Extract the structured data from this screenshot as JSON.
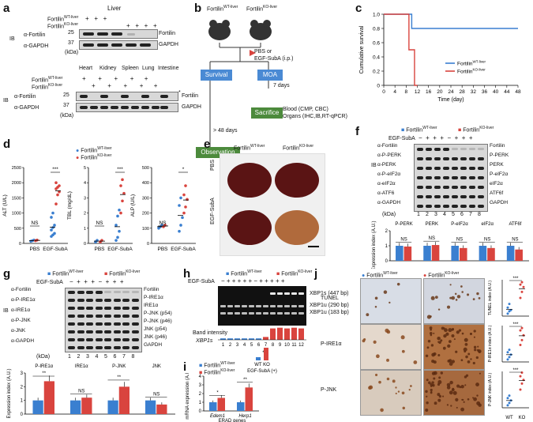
{
  "panel_labels": {
    "a": "a",
    "b": "b",
    "c": "c",
    "d": "d",
    "e": "e",
    "f": "f",
    "g": "g",
    "h": "h",
    "i": "i",
    "j": "j"
  },
  "legend": {
    "wt": "Fortilin",
    "wt_sup": "WT-liver",
    "ko": "Fortilin",
    "ko_sup": "KO-liver"
  },
  "colors": {
    "wt": "#3a7fd0",
    "ko": "#d9443e",
    "gel": "#111111",
    "tissue_brown": "#8a4a1e"
  },
  "a": {
    "liver_title": "Liver",
    "ib": "IB",
    "rows": [
      "α-Fortilin",
      "α-GAPDH"
    ],
    "right_labels": [
      "Fortilin",
      "GAPDH"
    ],
    "kda": "(kDa)",
    "markers": [
      "25",
      "37"
    ],
    "wt_marks": [
      "+",
      "+",
      "+",
      "",
      "",
      "",
      ""
    ],
    "ko_marks": [
      "",
      "",
      "",
      "+",
      "+",
      "+",
      "+"
    ],
    "tissues": [
      "Heart",
      "Kidney",
      "Spleen",
      "Lung",
      "Intestine"
    ],
    "star": "*"
  },
  "b": {
    "mouse_wt": "Fortilin",
    "mouse_ko": "Fortilin",
    "treatment": "PBS or",
    "treatment2": "EGF-SubA (i.p.)",
    "survival": "Survival",
    "moa": "MOA",
    "days7": "7 days",
    "sacrifice": "Sacrifice",
    "blood": "Blood (CMP, CBC)",
    "organs": "Organs (IHC,IB,RT-qPCR)",
    "days48": "> 48 days",
    "observation": "Observation"
  },
  "c": {
    "ylabel": "Cumulative survival",
    "xlabel": "Time (day)",
    "xticks": [
      "0",
      "4",
      "8",
      "12",
      "16",
      "20",
      "24",
      "28",
      "32",
      "36",
      "40",
      "44",
      "48"
    ],
    "yticks": [
      "0",
      "0.2",
      "0.4",
      "0.6",
      "0.8",
      "1.0"
    ]
  },
  "chart_data": [
    {
      "type": "line",
      "panel": "c",
      "title": "",
      "xlabel": "Time (day)",
      "ylabel": "Cumulative survival",
      "xlim": [
        0,
        48
      ],
      "ylim": [
        0,
        1
      ],
      "series": [
        {
          "name": "FortilinWT-liver",
          "x": [
            0,
            10,
            10,
            48
          ],
          "y": [
            1,
            1,
            0.8,
            0.8
          ]
        },
        {
          "name": "FortilinKO-liver",
          "x": [
            0,
            9,
            9,
            11,
            11,
            12
          ],
          "y": [
            1,
            1,
            0.5,
            0.5,
            0,
            0
          ]
        }
      ]
    },
    {
      "type": "scatter",
      "panel": "d",
      "title": "",
      "ylabel": "ALT (U/L)",
      "categories": [
        "PBS",
        "EGF-SubA"
      ],
      "ylim": [
        0,
        2500
      ],
      "series": [
        {
          "name": "FortilinWT-liver",
          "values": [
            [
              70,
              90,
              110
            ],
            [
              230,
              280,
              330,
              440,
              520,
              600,
              860,
              1000
            ]
          ]
        },
        {
          "name": "FortilinKO-liver",
          "values": [
            [
              90,
              110
            ],
            [
              1300,
              1600,
              1700,
              1800,
              1850,
              1900,
              2000
            ]
          ]
        }
      ],
      "annotations": [
        "NS",
        "***"
      ]
    },
    {
      "type": "scatter",
      "panel": "d",
      "title": "",
      "ylabel": "TBL (mg/dL)",
      "categories": [
        "PBS",
        "EGF-SubA"
      ],
      "ylim": [
        0,
        5
      ],
      "series": [
        {
          "name": "FortilinWT-liver",
          "values": [
            [
              0.1,
              0.2
            ],
            [
              0.2,
              0.4,
              0.8,
              1.2,
              1.8,
              2.2
            ]
          ]
        },
        {
          "name": "FortilinKO-liver",
          "values": [
            [
              0.1,
              0.2
            ],
            [
              2.0,
              2.8,
              3.3,
              3.8,
              4.2
            ]
          ]
        }
      ],
      "annotations": [
        "NS",
        "***"
      ]
    },
    {
      "type": "scatter",
      "panel": "d",
      "title": "",
      "ylabel": "ALP (U/L)",
      "categories": [
        "PBS",
        "EGF-SubA"
      ],
      "ylim": [
        0,
        500
      ],
      "series": [
        {
          "name": "FortilinWT-liver",
          "values": [
            [
              100,
              110,
              120
            ],
            [
              80,
              120,
              170,
              250,
              300
            ]
          ]
        },
        {
          "name": "FortilinKO-liver",
          "values": [
            [
              110,
              120
            ],
            [
              200,
              240,
              290,
              320,
              380
            ]
          ]
        }
      ],
      "annotations": [
        "NS",
        "*"
      ]
    },
    {
      "type": "bar",
      "panel": "f",
      "title": "",
      "ylabel": "Expression index (A.U.)",
      "categories": [
        "P-PERK",
        "PERK",
        "P-eIF2α",
        "eIF2α",
        "ATF6f"
      ],
      "ylim": [
        0,
        2
      ],
      "series": [
        {
          "name": "FortilinWT-liver",
          "values": [
            1.0,
            1.0,
            1.0,
            1.0,
            1.0
          ]
        },
        {
          "name": "FortilinKO-liver",
          "values": [
            0.95,
            1.05,
            0.85,
            0.85,
            0.75
          ]
        }
      ],
      "annotations": [
        "NS",
        "NS",
        "NS",
        "NS",
        "NS"
      ]
    },
    {
      "type": "bar",
      "panel": "g",
      "title": "",
      "ylabel": "Expression index (A.U.)",
      "categories": [
        "P-IRE1α",
        "IRE1α",
        "P-JNK",
        "JNK"
      ],
      "ylim": [
        0,
        3
      ],
      "series": [
        {
          "name": "FortilinWT-liver",
          "values": [
            1.0,
            1.0,
            1.0,
            1.0
          ]
        },
        {
          "name": "FortilinKO-liver",
          "values": [
            2.4,
            1.2,
            2.0,
            0.7
          ]
        }
      ],
      "annotations": [
        "**",
        "NS",
        "**",
        "NS"
      ]
    },
    {
      "type": "bar",
      "panel": "h",
      "title": "",
      "ylabel": "",
      "categories": [
        "1",
        "2",
        "3",
        "4",
        "5",
        "6",
        "7",
        "8",
        "9",
        "10",
        "11",
        "12"
      ],
      "ylim": [
        0,
        1
      ],
      "series": [
        {
          "name": "XBP1s band intensity",
          "values": [
            0.1,
            0.1,
            0.1,
            0.1,
            0.1,
            0.1,
            0.2,
            0.8,
            0.85,
            0.8,
            0.85,
            0.8
          ]
        }
      ],
      "annotations": [
        "***"
      ]
    },
    {
      "type": "bar",
      "panel": "i",
      "title": "",
      "ylabel": "mRNA expression (A.U.)",
      "xlabel": "ERAD genes",
      "categories": [
        "Edem1",
        "Herp1"
      ],
      "ylim": [
        0,
        4
      ],
      "series": [
        {
          "name": "FortilinWT-liver",
          "values": [
            1.0,
            1.0
          ]
        },
        {
          "name": "FortilinKO-liver",
          "values": [
            1.5,
            2.7
          ]
        }
      ],
      "annotations": [
        "*",
        "**"
      ]
    },
    {
      "type": "scatter",
      "panel": "j",
      "title": "",
      "ylabel": "TUNEL index (A.U.)",
      "categories": [
        "WT",
        "KO"
      ],
      "ylim": [
        0,
        3
      ],
      "series": [
        {
          "name": "WT",
          "values": [
            0.2,
            0.4,
            0.5,
            0.7,
            1.0
          ]
        },
        {
          "name": "KO",
          "values": [
            1.5,
            2.0,
            2.4,
            2.6,
            2.8
          ]
        }
      ],
      "annotations": [
        "***"
      ]
    },
    {
      "type": "scatter",
      "panel": "j",
      "title": "",
      "ylabel": "P-IRE1α index (A.U.)",
      "categories": [
        "WT",
        "KO"
      ],
      "ylim": [
        0,
        3
      ],
      "series": [
        {
          "name": "WT",
          "values": [
            0.2,
            0.4,
            0.6,
            0.8,
            1.0
          ]
        },
        {
          "name": "KO",
          "values": [
            1.4,
            1.8,
            2.2,
            2.6,
            2.8
          ]
        }
      ],
      "annotations": [
        "***"
      ]
    },
    {
      "type": "scatter",
      "panel": "j",
      "title": "",
      "ylabel": "P-JNK index (A.U.)",
      "categories": [
        "WT",
        "KO"
      ],
      "ylim": [
        0,
        3
      ],
      "series": [
        {
          "name": "WT",
          "values": [
            0.2,
            0.4,
            0.6,
            0.8,
            1.0
          ]
        },
        {
          "name": "KO",
          "values": [
            1.5,
            2.0,
            2.3,
            2.6,
            2.9
          ]
        }
      ],
      "annotations": [
        "***"
      ]
    }
  ],
  "d": {
    "alt": "ALT (U/L)",
    "tbl": "TBL (mg/dL)",
    "alp": "ALP (U/L)",
    "pbs": "PBS",
    "egf": "EGF-SubA",
    "ns": "NS",
    "three": "***",
    "one": "*",
    "alt_ticks": [
      "0",
      "500",
      "1000",
      "1500",
      "2000",
      "2500"
    ],
    "tbl_ticks": [
      "0",
      "1",
      "2",
      "3",
      "4",
      "5"
    ],
    "alp_ticks": [
      "0",
      "100",
      "200",
      "300",
      "400",
      "500"
    ]
  },
  "e": {
    "wt": "Fortilin",
    "ko": "Fortilin",
    "pbs": "PBS",
    "egf": "EGF-SubA"
  },
  "f": {
    "egf": "EGF-SubA",
    "minus": "−",
    "plus": "+",
    "ib": "IB",
    "rows": [
      "α-Fortilin",
      "α-P-PERK",
      "α-PERK",
      "α-P-eIF2α",
      "α-eIF2α",
      "α-ATF6",
      "α-GAPDH"
    ],
    "right": [
      "Fortilin",
      "P-PERK",
      "PERK",
      "P-eIF2α",
      "eIF2α",
      "ATF6f",
      "GAPDH"
    ],
    "kda": "(kDa)",
    "lanes": [
      "1",
      "2",
      "3",
      "4",
      "5",
      "6",
      "7",
      "8"
    ],
    "ylabel": "Expression index (A.U.)",
    "yticks": [
      "0",
      "1",
      "2"
    ],
    "cats": [
      "P-PERK",
      "PERK",
      "P-eIF2α",
      "eIF2α",
      "ATF6f"
    ],
    "ns": "NS"
  },
  "g": {
    "egf": "EGF-SubA",
    "ib": "IB",
    "rows": [
      "α-Fortilin",
      "α-P-IRE1α",
      "α-IRE1α",
      "α-P-JNK",
      "α-JNK",
      "α-GAPDH"
    ],
    "right": [
      "Fortilin",
      "P-IRE1α",
      "IRE1α",
      "P-JNK (p54)",
      "P-JNK (p46)",
      "JNK (p54)",
      "JNK (p46)",
      "GAPDH"
    ],
    "kda": "(kDa)",
    "lanes": [
      "1",
      "2",
      "3",
      "4",
      "5",
      "6",
      "7",
      "8"
    ],
    "ylabel": "Expression index (A.U.)",
    "yticks": [
      "0",
      "1",
      "2",
      "3"
    ],
    "cats": [
      "P-IRE1α",
      "IRE1α",
      "P-JNK",
      "JNK"
    ],
    "sig": [
      "**",
      "NS",
      "**",
      "NS"
    ]
  },
  "h": {
    "egf": "EGF-SubA",
    "bands": [
      "XBP1s (447 bp)",
      "XBP1u (290 bp)",
      "XBP1u (183 bp)"
    ],
    "band_intensity": "Band intensity",
    "xbp1s": "XBP1s",
    "lanes": [
      "1",
      "2",
      "3",
      "4",
      "5",
      "6",
      "7",
      "8",
      "9",
      "10",
      "11",
      "12"
    ],
    "wtko": "WT KO",
    "egf_plus": "EGF-SubA (+)",
    "sig": "***"
  },
  "i": {
    "ylabel": "mRNA expression (A.U.)",
    "yticks": [
      "0",
      "1",
      "2",
      "3",
      "4"
    ],
    "cats": [
      "Edem1",
      "Herp1"
    ],
    "xlabel": "ERAD genes",
    "sig": [
      "*",
      "**"
    ]
  },
  "j": {
    "rows": [
      "TUNEL",
      "P-IRE1α",
      "P-JNK"
    ],
    "ylabels": [
      "TUNEL index (A.U.)",
      "P-IRE1α index (A.U.)",
      "P-JNK index (A.U.)"
    ],
    "sig": "***",
    "xl": [
      "WT",
      "KO"
    ]
  }
}
